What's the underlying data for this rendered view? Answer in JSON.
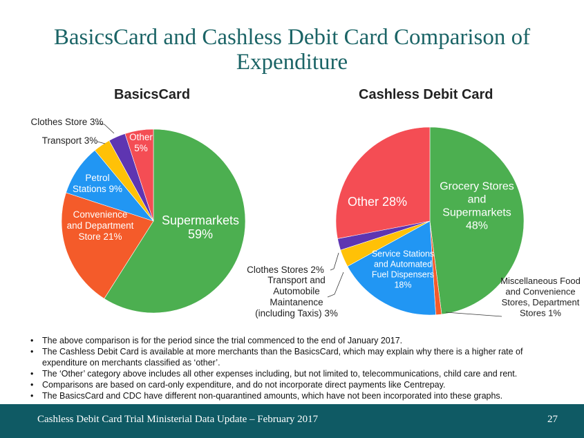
{
  "title": "BasicsCard and Cashless Debit Card Comparison of Expenditure",
  "chart_data": [
    {
      "type": "pie",
      "title": "BasicsCard",
      "start_angle_deg": 0,
      "direction": "clockwise",
      "slices": [
        {
          "label_lines": [
            "Supermarkets",
            "59%"
          ],
          "value": 59,
          "color": "#4caf50"
        },
        {
          "label_lines": [
            "Convenience",
            "and Department",
            "Store 21%"
          ],
          "value": 21,
          "color": "#f45b2a"
        },
        {
          "label_lines": [
            "Petrol",
            "Stations 9%"
          ],
          "value": 9,
          "color": "#2196f3"
        },
        {
          "label_lines": [
            "Transport 3%"
          ],
          "value": 3,
          "color": "#ffc107"
        },
        {
          "label_lines": [
            "Clothes Store 3%"
          ],
          "value": 3,
          "color": "#5e35b1"
        },
        {
          "label_lines": [
            "Other",
            "5%"
          ],
          "value": 5,
          "color": "#f44d54"
        }
      ]
    },
    {
      "type": "pie",
      "title": "Cashless Debit Card",
      "start_angle_deg": 0,
      "direction": "clockwise",
      "slices": [
        {
          "label_lines": [
            "Grocery Stores",
            "and",
            "Supermarkets",
            "48%"
          ],
          "value": 48,
          "color": "#4caf50"
        },
        {
          "label_lines": [
            "Miscellaneous Food",
            "and Convenience",
            "Stores, Department",
            "Stores 1%"
          ],
          "value": 1,
          "color": "#f45b2a"
        },
        {
          "label_lines": [
            "Service Stations",
            "and Automated",
            "Fuel Dispensers",
            "18%"
          ],
          "value": 18,
          "color": "#2196f3"
        },
        {
          "label_lines": [
            "Transport and",
            "Automobile",
            "Maintanence",
            "(including Taxis) 3%"
          ],
          "value": 3,
          "color": "#ffc107"
        },
        {
          "label_lines": [
            "Clothes Stores 2%"
          ],
          "value": 2,
          "color": "#5e35b1"
        },
        {
          "label_lines": [
            "Other 28%"
          ],
          "value": 28,
          "color": "#f44d54"
        }
      ]
    }
  ],
  "notes": [
    "The above comparison is for the period since the trial commenced to the end of January 2017.",
    "The Cashless Debit Card is available at more merchants than the BasicsCard, which may explain why there is a higher rate of expenditure on merchants classified as ‘other’.",
    "The ‘Other’ category above includes all other expenses including, but not limited to, telecommunications, child care and rent.",
    "Comparisons are based on card-only expenditure, and do not incorporate direct payments like Centrepay.",
    "The BasicsCard and CDC have different non-quarantined amounts, which have not been incorporated into these graphs."
  ],
  "footer": {
    "text": "Cashless Debit Card Trial Ministerial Data Update – February 2017",
    "page": "27"
  }
}
